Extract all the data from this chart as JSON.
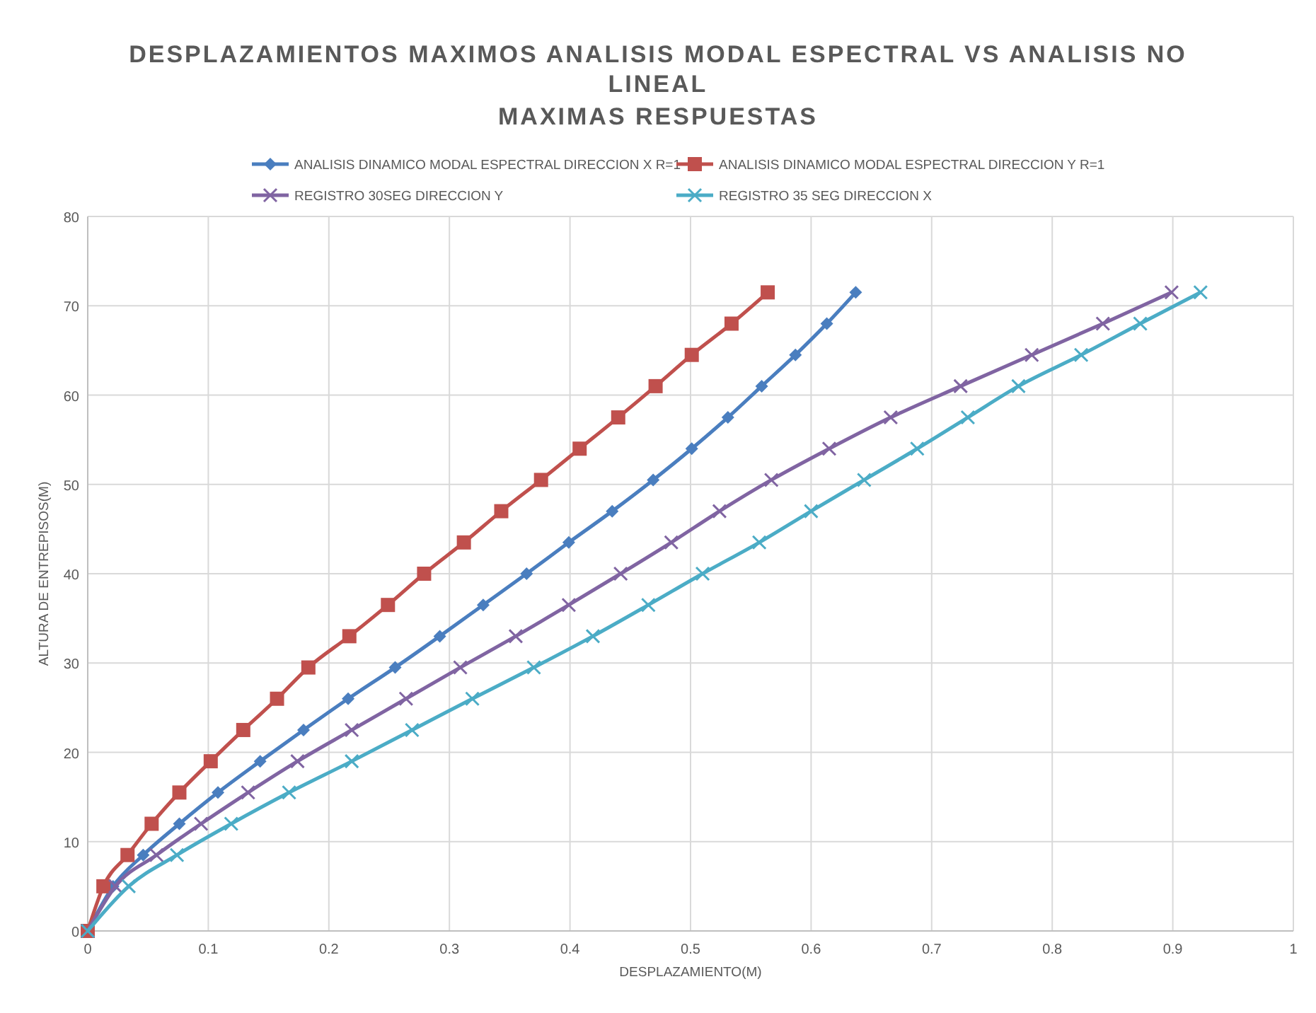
{
  "chart_data": {
    "type": "line",
    "title": "DESPLAZAMIENTOS MAXIMOS ANALISIS MODAL ESPECTRAL VS ANALISIS NO LINEAL",
    "subtitle": "MAXIMAS RESPUESTAS",
    "xlabel": "DESPLAZAMIENTO(M)",
    "ylabel": "ALTURA DE ENTREPISOS(M)",
    "xlim": [
      0,
      1
    ],
    "xticks": [
      0,
      0.1,
      0.2,
      0.3,
      0.4,
      0.5,
      0.6,
      0.7,
      0.8,
      0.9,
      1
    ],
    "ylim": [
      0,
      80
    ],
    "yticks": [
      0,
      10,
      20,
      30,
      40,
      50,
      60,
      70,
      80
    ],
    "grid": true,
    "legend": "top",
    "series": [
      {
        "name": "ANALISIS DINAMICO MODAL ESPECTRAL DIRECCION X R=1",
        "color": "#4a7ebf",
        "marker": "diamond",
        "x": [
          0,
          0.021,
          0.046,
          0.076,
          0.108,
          0.143,
          0.179,
          0.216,
          0.255,
          0.292,
          0.328,
          0.364,
          0.399,
          0.435,
          0.469,
          0.501,
          0.531,
          0.559,
          0.587,
          0.613,
          0.637
        ],
        "values": [
          0,
          5,
          8.5,
          12,
          15.5,
          19,
          22.5,
          26,
          29.5,
          33,
          36.5,
          40,
          43.5,
          47,
          50.5,
          54,
          57.5,
          61,
          64.5,
          68,
          71.5
        ]
      },
      {
        "name": "ANALISIS DINAMICO MODAL ESPECTRAL DIRECCION Y R=1",
        "color": "#c0504d",
        "marker": "square",
        "x": [
          0,
          0.013,
          0.033,
          0.053,
          0.076,
          0.102,
          0.129,
          0.157,
          0.183,
          0.217,
          0.249,
          0.279,
          0.312,
          0.343,
          0.376,
          0.408,
          0.44,
          0.471,
          0.501,
          0.534,
          0.564
        ],
        "values": [
          0,
          5,
          8.5,
          12,
          15.5,
          19,
          22.5,
          26,
          29.5,
          33,
          36.5,
          40,
          43.5,
          47,
          50.5,
          54,
          57.5,
          61,
          64.5,
          68,
          71.5
        ]
      },
      {
        "name": "REGISTRO 30SEG DIRECCION Y",
        "color": "#8064a2",
        "marker": "cross",
        "x": [
          0,
          0.023,
          0.057,
          0.094,
          0.133,
          0.174,
          0.219,
          0.264,
          0.309,
          0.355,
          0.399,
          0.442,
          0.484,
          0.524,
          0.567,
          0.615,
          0.666,
          0.724,
          0.783,
          0.842,
          0.899
        ],
        "values": [
          0,
          5,
          8.5,
          12,
          15.5,
          19,
          22.5,
          26,
          29.5,
          33,
          36.5,
          40,
          43.5,
          47,
          50.5,
          54,
          57.5,
          61,
          64.5,
          68,
          71.5
        ]
      },
      {
        "name": "REGISTRO 35 SEG DIRECCION X",
        "color": "#4bacc6",
        "marker": "cross",
        "x": [
          0,
          0.034,
          0.074,
          0.119,
          0.167,
          0.219,
          0.269,
          0.319,
          0.37,
          0.419,
          0.465,
          0.51,
          0.557,
          0.6,
          0.644,
          0.688,
          0.73,
          0.772,
          0.824,
          0.873,
          0.923
        ],
        "values": [
          0,
          5,
          8.5,
          12,
          15.5,
          19,
          22.5,
          26,
          29.5,
          33,
          36.5,
          40,
          43.5,
          47,
          50.5,
          54,
          57.5,
          61,
          64.5,
          68,
          71.5
        ]
      }
    ]
  }
}
